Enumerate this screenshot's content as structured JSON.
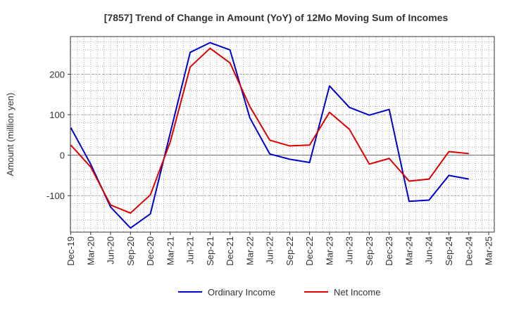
{
  "chart_data": {
    "type": "line",
    "title": "[7857]  Trend of Change in Amount (YoY) of 12Mo Moving Sum of Incomes",
    "ylabel": "Amount (million yen)",
    "xlabel": "",
    "ylim": [
      -190,
      293
    ],
    "yticks": [
      -100,
      0,
      100,
      200
    ],
    "x_ticks": [
      "Dec-19",
      "Mar-20",
      "Jun-20",
      "Sep-20",
      "Dec-20",
      "Mar-21",
      "Jun-21",
      "Sep-21",
      "Dec-21",
      "Mar-22",
      "Jun-22",
      "Sep-22",
      "Dec-22",
      "Mar-23",
      "Jun-23",
      "Sep-23",
      "Dec-23",
      "Mar-24",
      "Jun-24",
      "Sep-24",
      "Dec-24",
      "Mar-25"
    ],
    "grid": true,
    "legend_position": "bottom",
    "series": [
      {
        "name": "Ordinary Income",
        "color": "#0000cc",
        "values": [
          68,
          -22,
          -128,
          -180,
          -145,
          55,
          254,
          278,
          260,
          92,
          3,
          -10,
          -18,
          171,
          118,
          99,
          113,
          -114,
          -111,
          -50,
          -59
        ]
      },
      {
        "name": "Net Income",
        "color": "#dd0000",
        "values": [
          25,
          -29,
          -123,
          -143,
          -98,
          33,
          218,
          264,
          228,
          120,
          37,
          23,
          25,
          106,
          64,
          -22,
          -8,
          -64,
          -59,
          9,
          4
        ]
      }
    ]
  }
}
